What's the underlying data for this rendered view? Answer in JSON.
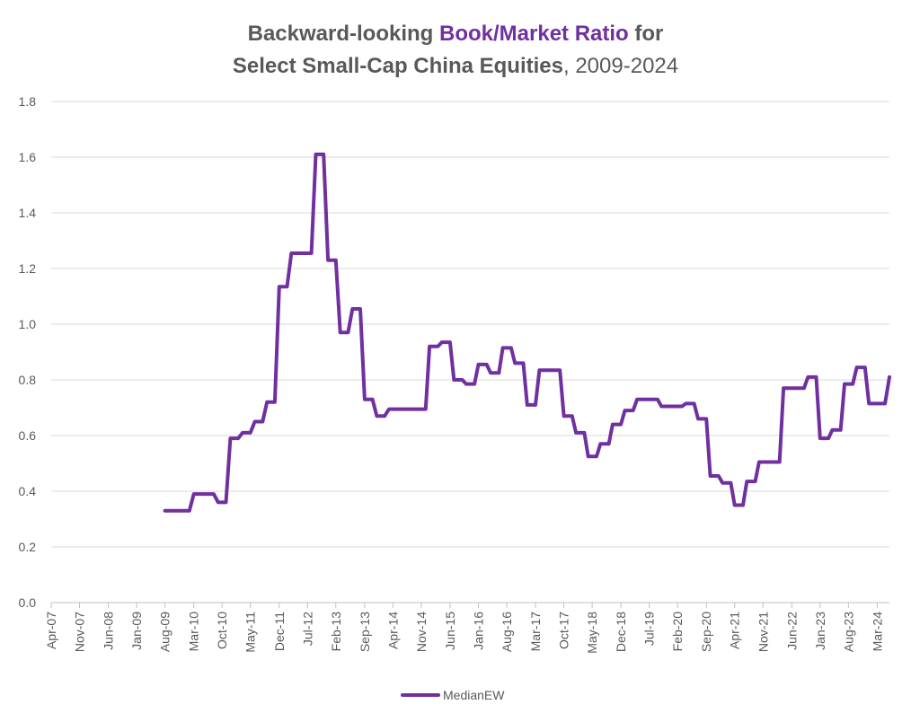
{
  "chart_data": {
    "type": "line",
    "title_parts": {
      "line1_prefix": "Backward-looking ",
      "line1_accent": "Book/Market Ratio",
      "line1_suffix": " for",
      "line2_bold": "Select Small-Cap China Equities",
      "line2_rest": ", 2009-2024"
    },
    "ylim": [
      0,
      1.8
    ],
    "yticks": [
      "0.0",
      "0.2",
      "0.4",
      "0.6",
      "0.8",
      "1.0",
      "1.2",
      "1.4",
      "1.6",
      "1.8"
    ],
    "xlim": [
      2007.25,
      2024.42
    ],
    "xticks": [
      {
        "label": "Apr-07",
        "x": 2007.25
      },
      {
        "label": "Nov-07",
        "x": 2007.83
      },
      {
        "label": "Jun-08",
        "x": 2008.42
      },
      {
        "label": "Jan-09",
        "x": 2009.0
      },
      {
        "label": "Aug-09",
        "x": 2009.58
      },
      {
        "label": "Mar-10",
        "x": 2010.17
      },
      {
        "label": "Oct-10",
        "x": 2010.75
      },
      {
        "label": "May-11",
        "x": 2011.33
      },
      {
        "label": "Dec-11",
        "x": 2011.92
      },
      {
        "label": "Jul-12",
        "x": 2012.5
      },
      {
        "label": "Feb-13",
        "x": 2013.08
      },
      {
        "label": "Sep-13",
        "x": 2013.67
      },
      {
        "label": "Apr-14",
        "x": 2014.25
      },
      {
        "label": "Nov-14",
        "x": 2014.83
      },
      {
        "label": "Jun-15",
        "x": 2015.42
      },
      {
        "label": "Jan-16",
        "x": 2016.0
      },
      {
        "label": "Aug-16",
        "x": 2016.58
      },
      {
        "label": "Mar-17",
        "x": 2017.17
      },
      {
        "label": "Oct-17",
        "x": 2017.75
      },
      {
        "label": "May-18",
        "x": 2018.33
      },
      {
        "label": "Dec-18",
        "x": 2018.92
      },
      {
        "label": "Jul-19",
        "x": 2019.5
      },
      {
        "label": "Feb-20",
        "x": 2020.08
      },
      {
        "label": "Sep-20",
        "x": 2020.67
      },
      {
        "label": "Apr-21",
        "x": 2021.25
      },
      {
        "label": "Nov-21",
        "x": 2021.83
      },
      {
        "label": "Jun-22",
        "x": 2022.42
      },
      {
        "label": "Jan-23",
        "x": 2023.0
      },
      {
        "label": "Aug-23",
        "x": 2023.58
      },
      {
        "label": "Mar-24",
        "x": 2024.17
      }
    ],
    "series": [
      {
        "name": "MedianEW",
        "color": "#7030a0",
        "points": [
          [
            2009.58,
            0.33
          ],
          [
            2009.83,
            0.33
          ],
          [
            2010.08,
            0.33
          ],
          [
            2010.17,
            0.39
          ],
          [
            2010.33,
            0.39
          ],
          [
            2010.58,
            0.39
          ],
          [
            2010.67,
            0.36
          ],
          [
            2010.83,
            0.36
          ],
          [
            2010.92,
            0.59
          ],
          [
            2011.08,
            0.59
          ],
          [
            2011.17,
            0.61
          ],
          [
            2011.33,
            0.61
          ],
          [
            2011.42,
            0.65
          ],
          [
            2011.58,
            0.65
          ],
          [
            2011.67,
            0.72
          ],
          [
            2011.83,
            0.72
          ],
          [
            2011.92,
            1.135
          ],
          [
            2012.08,
            1.135
          ],
          [
            2012.17,
            1.255
          ],
          [
            2012.33,
            1.255
          ],
          [
            2012.58,
            1.255
          ],
          [
            2012.67,
            1.61
          ],
          [
            2012.83,
            1.61
          ],
          [
            2012.92,
            1.23
          ],
          [
            2013.08,
            1.23
          ],
          [
            2013.17,
            0.97
          ],
          [
            2013.33,
            0.97
          ],
          [
            2013.42,
            1.055
          ],
          [
            2013.58,
            1.055
          ],
          [
            2013.67,
            0.73
          ],
          [
            2013.83,
            0.73
          ],
          [
            2013.92,
            0.67
          ],
          [
            2014.08,
            0.67
          ],
          [
            2014.17,
            0.695
          ],
          [
            2014.33,
            0.695
          ],
          [
            2014.58,
            0.695
          ],
          [
            2014.67,
            0.695
          ],
          [
            2014.92,
            0.695
          ],
          [
            2015.0,
            0.92
          ],
          [
            2015.17,
            0.92
          ],
          [
            2015.25,
            0.935
          ],
          [
            2015.42,
            0.935
          ],
          [
            2015.5,
            0.8
          ],
          [
            2015.67,
            0.8
          ],
          [
            2015.75,
            0.785
          ],
          [
            2015.92,
            0.785
          ],
          [
            2016.0,
            0.855
          ],
          [
            2016.17,
            0.855
          ],
          [
            2016.25,
            0.825
          ],
          [
            2016.42,
            0.825
          ],
          [
            2016.5,
            0.915
          ],
          [
            2016.67,
            0.915
          ],
          [
            2016.75,
            0.86
          ],
          [
            2016.92,
            0.86
          ],
          [
            2017.0,
            0.71
          ],
          [
            2017.17,
            0.71
          ],
          [
            2017.25,
            0.835
          ],
          [
            2017.42,
            0.835
          ],
          [
            2017.67,
            0.835
          ],
          [
            2017.75,
            0.67
          ],
          [
            2017.92,
            0.67
          ],
          [
            2018.0,
            0.61
          ],
          [
            2018.17,
            0.61
          ],
          [
            2018.25,
            0.525
          ],
          [
            2018.42,
            0.525
          ],
          [
            2018.5,
            0.57
          ],
          [
            2018.67,
            0.57
          ],
          [
            2018.75,
            0.64
          ],
          [
            2018.92,
            0.64
          ],
          [
            2019.0,
            0.69
          ],
          [
            2019.17,
            0.69
          ],
          [
            2019.25,
            0.73
          ],
          [
            2019.42,
            0.73
          ],
          [
            2019.67,
            0.73
          ],
          [
            2019.75,
            0.705
          ],
          [
            2019.92,
            0.705
          ],
          [
            2020.17,
            0.705
          ],
          [
            2020.25,
            0.715
          ],
          [
            2020.42,
            0.715
          ],
          [
            2020.5,
            0.66
          ],
          [
            2020.67,
            0.66
          ],
          [
            2020.75,
            0.455
          ],
          [
            2020.92,
            0.455
          ],
          [
            2021.0,
            0.43
          ],
          [
            2021.17,
            0.43
          ],
          [
            2021.25,
            0.35
          ],
          [
            2021.42,
            0.35
          ],
          [
            2021.5,
            0.435
          ],
          [
            2021.67,
            0.435
          ],
          [
            2021.75,
            0.505
          ],
          [
            2021.92,
            0.505
          ],
          [
            2022.17,
            0.505
          ],
          [
            2022.25,
            0.77
          ],
          [
            2022.42,
            0.77
          ],
          [
            2022.67,
            0.77
          ],
          [
            2022.75,
            0.81
          ],
          [
            2022.92,
            0.81
          ],
          [
            2023.0,
            0.59
          ],
          [
            2023.17,
            0.59
          ],
          [
            2023.25,
            0.62
          ],
          [
            2023.42,
            0.62
          ],
          [
            2023.5,
            0.785
          ],
          [
            2023.67,
            0.785
          ],
          [
            2023.75,
            0.845
          ],
          [
            2023.92,
            0.845
          ],
          [
            2024.0,
            0.715
          ],
          [
            2024.17,
            0.715
          ],
          [
            2024.33,
            0.715
          ],
          [
            2024.42,
            0.81
          ]
        ]
      }
    ],
    "legend": {
      "position": "bottom-center",
      "label": "MedianEW"
    },
    "grid": true,
    "xlabel": "",
    "ylabel": ""
  }
}
